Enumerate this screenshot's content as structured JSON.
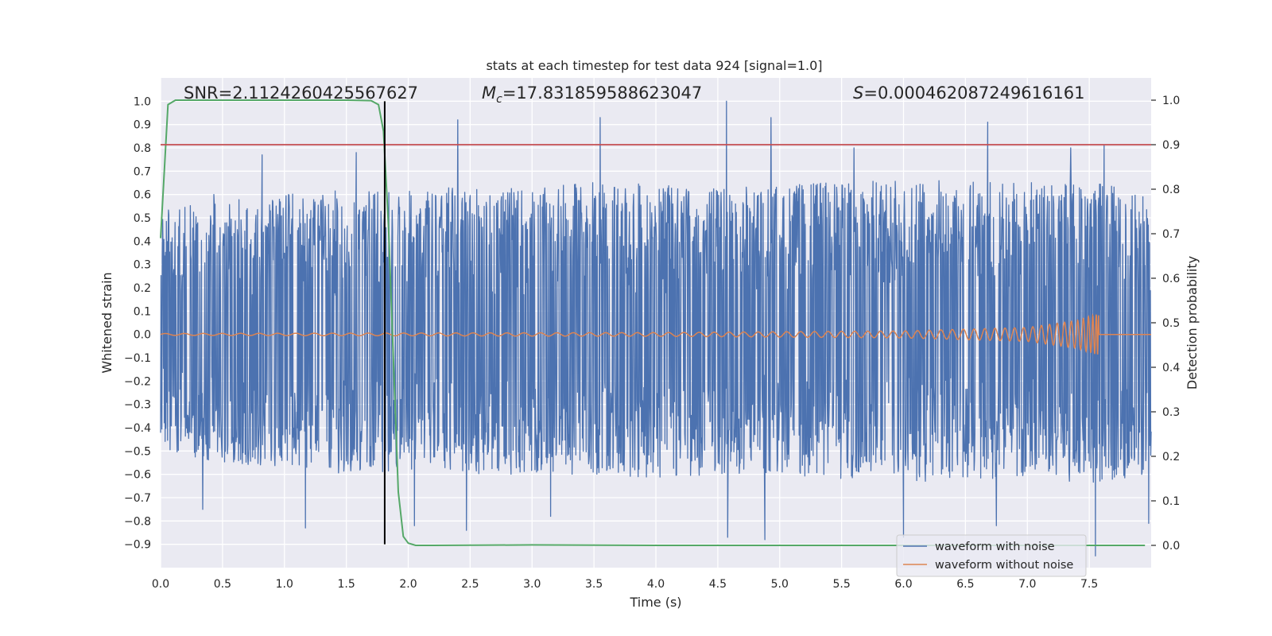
{
  "chart_data": {
    "type": "line",
    "title": "stats at each timestep for test data 924 [signal=1.0]",
    "xlabel": "Time (s)",
    "ylabel": "Whitened strain",
    "ylabel_right": "Detection probability",
    "xlim": [
      0.0,
      8.0
    ],
    "ylim": [
      -1.0,
      1.1
    ],
    "ylim_right": [
      -0.05,
      1.05
    ],
    "x_ticks": [
      "0.0",
      "0.5",
      "1.0",
      "1.5",
      "2.0",
      "2.5",
      "3.0",
      "3.5",
      "4.0",
      "4.5",
      "5.0",
      "5.5",
      "6.0",
      "6.5",
      "7.0",
      "7.5"
    ],
    "y_ticks": [
      "−0.9",
      "−0.8",
      "−0.7",
      "−0.6",
      "−0.5",
      "−0.4",
      "−0.3",
      "−0.2",
      "−0.1",
      "0.0",
      "0.1",
      "0.2",
      "0.3",
      "0.4",
      "0.5",
      "0.6",
      "0.7",
      "0.8",
      "0.9",
      "1.0"
    ],
    "y_ticks_right": [
      "0.0",
      "0.1",
      "0.2",
      "0.3",
      "0.4",
      "0.5",
      "0.6",
      "0.7",
      "0.8",
      "0.9",
      "1.0"
    ],
    "grid": true,
    "legend_position": "lower-right",
    "annotations": {
      "snr": "SNR=2.1124260425567627",
      "mc_symbol": "M",
      "mc_sub": "c",
      "mc_value": "=17.831859588623047",
      "s_symbol": "S",
      "s_value": "=0.000462087249616161"
    },
    "colors": {
      "noise": "#4c72b0",
      "clean": "#dd8452",
      "probability": "#55a868",
      "threshold": "#c44e52",
      "marker": "#000000",
      "background": "#eaeaf2"
    },
    "series": [
      {
        "name": "waveform with noise",
        "envelope_x": [
          0.0,
          0.5,
          1.0,
          1.5,
          2.0,
          2.5,
          3.0,
          3.5,
          4.0,
          4.5,
          5.0,
          5.5,
          6.0,
          6.5,
          7.0,
          7.5,
          8.0
        ],
        "envelope_upper": [
          0.55,
          0.58,
          0.6,
          0.62,
          0.62,
          0.64,
          0.62,
          0.66,
          0.64,
          0.63,
          0.64,
          0.66,
          0.66,
          0.67,
          0.65,
          0.66,
          0.62
        ],
        "envelope_lower": [
          -0.5,
          -0.55,
          -0.58,
          -0.6,
          -0.58,
          -0.6,
          -0.6,
          -0.6,
          -0.62,
          -0.6,
          -0.6,
          -0.62,
          -0.64,
          -0.62,
          -0.62,
          -0.64,
          -0.6
        ],
        "peaks": [
          [
            0.43,
            0.6
          ],
          [
            0.82,
            0.77
          ],
          [
            1.58,
            0.78
          ],
          [
            2.4,
            0.92
          ],
          [
            3.55,
            0.93
          ],
          [
            4.57,
            1.0
          ],
          [
            4.93,
            0.93
          ],
          [
            5.6,
            0.8
          ],
          [
            6.68,
            0.91
          ],
          [
            7.35,
            0.8
          ],
          [
            7.62,
            0.81
          ],
          [
            7.98,
            0.67
          ]
        ],
        "troughs": [
          [
            0.34,
            -0.75
          ],
          [
            1.17,
            -0.83
          ],
          [
            2.05,
            -0.82
          ],
          [
            2.47,
            -0.84
          ],
          [
            3.15,
            -0.78
          ],
          [
            4.58,
            -0.87
          ],
          [
            4.88,
            -0.88
          ],
          [
            6.0,
            -0.87
          ],
          [
            6.75,
            -0.82
          ],
          [
            7.55,
            -0.95
          ],
          [
            7.98,
            -0.81
          ]
        ]
      },
      {
        "name": "waveform without noise",
        "merger_time": 7.58,
        "amplitude": [
          [
            0.0,
            0.004
          ],
          [
            4.0,
            0.008
          ],
          [
            6.0,
            0.015
          ],
          [
            7.0,
            0.03
          ],
          [
            7.4,
            0.06
          ],
          [
            7.58,
            0.09
          ]
        ]
      },
      {
        "name": "detection probability",
        "x": [
          0.0,
          0.06,
          0.12,
          0.5,
          1.0,
          1.5,
          1.7,
          1.76,
          1.8,
          1.84,
          1.88,
          1.92,
          1.96,
          2.0,
          2.06,
          2.2,
          3.0,
          4.0,
          5.0,
          6.0,
          7.0,
          7.5,
          7.95
        ],
        "y": [
          0.69,
          0.99,
          1.0,
          1.0,
          1.0,
          1.0,
          0.999,
          0.99,
          0.93,
          0.72,
          0.42,
          0.12,
          0.02,
          0.005,
          0.0,
          0.0,
          0.001,
          0.0,
          0.0,
          0.0,
          0.0,
          0.0,
          0.0
        ]
      }
    ],
    "threshold_right": 0.9,
    "vertical_marker_x": 1.81,
    "vertical_marker_range": [
      -0.9,
      1.0
    ]
  }
}
